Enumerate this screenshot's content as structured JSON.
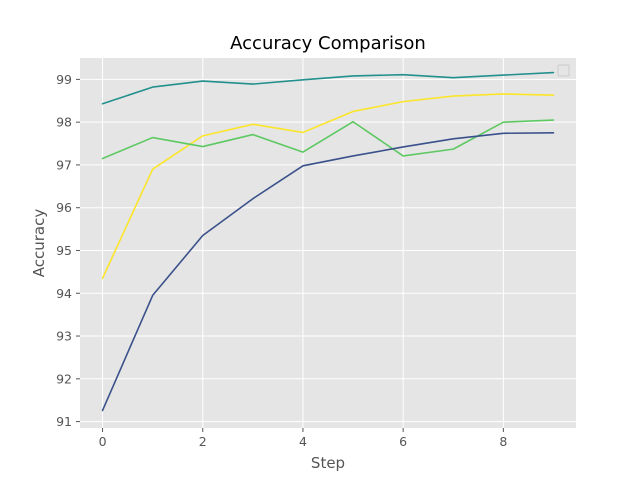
{
  "chart_data": {
    "type": "line",
    "title": "Accuracy Comparison",
    "xlabel": "Step",
    "ylabel": "Accuracy",
    "x": [
      0,
      1,
      2,
      3,
      4,
      5,
      6,
      7,
      8,
      9
    ],
    "xticks": [
      0,
      2,
      4,
      6,
      8
    ],
    "yticks": [
      91,
      92,
      93,
      94,
      95,
      96,
      97,
      98,
      99
    ],
    "xlim": [
      -0.45,
      9.45
    ],
    "ylim": [
      90.85,
      99.5
    ],
    "grid": true,
    "legend": "top-right",
    "colors": {
      "plot_background": "#e5e5e5",
      "grid": "#ffffff"
    },
    "series": [
      {
        "color": "#22908c",
        "values": [
          98.43,
          98.82,
          98.96,
          98.89,
          98.99,
          99.08,
          99.11,
          99.04,
          99.1,
          99.16
        ]
      },
      {
        "color": "#fbe52a",
        "values": [
          94.35,
          96.9,
          97.68,
          97.95,
          97.76,
          98.25,
          98.48,
          98.61,
          98.66,
          98.63
        ]
      },
      {
        "color": "#5ec962",
        "values": [
          97.15,
          97.64,
          97.43,
          97.71,
          97.3,
          98.01,
          97.21,
          97.37,
          98.0,
          98.05
        ]
      },
      {
        "color": "#3b518b",
        "values": [
          91.26,
          93.95,
          95.35,
          96.21,
          96.98,
          97.21,
          97.42,
          97.61,
          97.74,
          97.75
        ]
      }
    ]
  }
}
